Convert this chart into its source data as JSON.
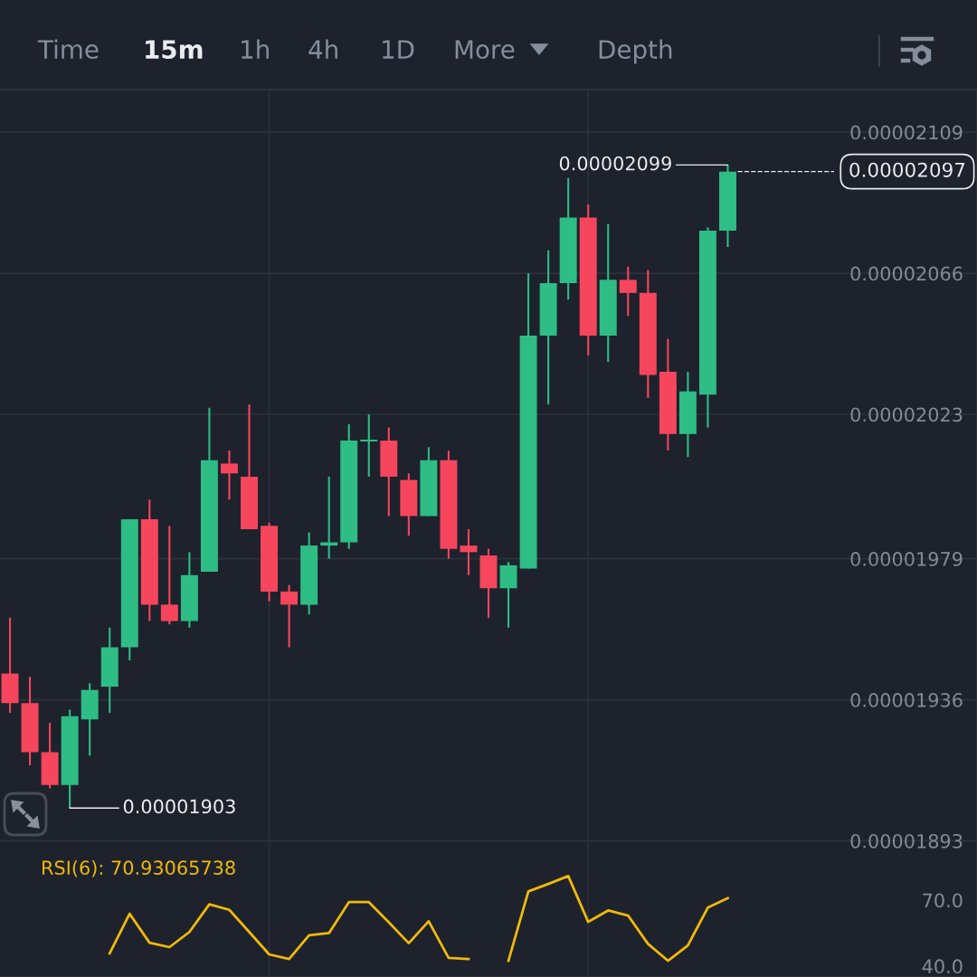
{
  "chart_data": [
    {
      "type": "other",
      "annotations": [
        "Time",
        "15m",
        "1h",
        "4h",
        "1D",
        "More",
        "Depth"
      ]
    },
    {
      "type": "candlestick",
      "categories": [
        null,
        null,
        null,
        null,
        null,
        null,
        null,
        null,
        null,
        null,
        null,
        null,
        null,
        null,
        null,
        null,
        null,
        null,
        null,
        null,
        null,
        null,
        null,
        null,
        null,
        null,
        null,
        null,
        null,
        null,
        null,
        null,
        null,
        null,
        null,
        null,
        null,
        null,
        null,
        null,
        null,
        null,
        null,
        null,
        null,
        null,
        null,
        null,
        null
      ],
      "ohlc": [
        [
          1.944e-05,
          1.961e-05,
          1.932e-05,
          1.935e-05
        ],
        [
          1.935e-05,
          1.943e-05,
          1.916e-05,
          1.92e-05
        ],
        [
          1.92e-05,
          1.929e-05,
          1.909e-05,
          1.91e-05
        ],
        [
          1.91e-05,
          1.933e-05,
          1.903e-05,
          1.931e-05
        ],
        [
          1.93e-05,
          1.941e-05,
          1.919e-05,
          1.939e-05
        ],
        [
          1.94e-05,
          1.958e-05,
          1.932e-05,
          1.952e-05
        ],
        [
          1.952e-05,
          1.991e-05,
          1.948e-05,
          1.991e-05
        ],
        [
          1.991e-05,
          1.997e-05,
          1.96e-05,
          1.965e-05
        ],
        [
          1.965e-05,
          1.989e-05,
          1.959e-05,
          1.96e-05
        ],
        [
          1.96e-05,
          1.981e-05,
          1.958e-05,
          1.974e-05
        ],
        [
          1.975e-05,
          2.025e-05,
          1.975e-05,
          2.009e-05
        ],
        [
          2.008e-05,
          2.012e-05,
          1.997e-05,
          2.005e-05
        ],
        [
          2.004e-05,
          2.026e-05,
          1.988e-05,
          1.988e-05
        ],
        [
          1.989e-05,
          1.99e-05,
          1.966e-05,
          1.969e-05
        ],
        [
          1.969e-05,
          1.971e-05,
          1.952e-05,
          1.965e-05
        ],
        [
          1.965e-05,
          1.987e-05,
          1.962e-05,
          1.983e-05
        ],
        [
          1.983e-05,
          2.004e-05,
          1.979e-05,
          1.984e-05
        ],
        [
          1.984e-05,
          2.02e-05,
          1.982e-05,
          2.015e-05
        ],
        [
          2.015e-05,
          2.023e-05,
          2.004e-05,
          2.015e-05
        ],
        [
          2.015e-05,
          2.019e-05,
          1.992e-05,
          2.004e-05
        ],
        [
          2.003e-05,
          2.005e-05,
          1.986e-05,
          1.992e-05
        ],
        [
          1.992e-05,
          2.013e-05,
          1.992e-05,
          2.009e-05
        ],
        [
          2.009e-05,
          2.012e-05,
          1.979e-05,
          1.982e-05
        ],
        [
          1.983e-05,
          1.988e-05,
          1.974e-05,
          1.981e-05
        ],
        [
          1.98e-05,
          1.982e-05,
          1.961e-05,
          1.97e-05
        ],
        [
          1.97e-05,
          1.978e-05,
          1.958e-05,
          1.977e-05
        ],
        [
          1.976e-05,
          2.066e-05,
          1.976e-05,
          2.047e-05
        ],
        [
          2.047e-05,
          2.073e-05,
          2.026e-05,
          2.063e-05
        ],
        [
          2.063e-05,
          2.095e-05,
          2.058e-05,
          2.083e-05
        ],
        [
          2.083e-05,
          2.087e-05,
          2.041e-05,
          2.047e-05
        ],
        [
          2.047e-05,
          2.081e-05,
          2.039e-05,
          2.064e-05
        ],
        [
          2.064e-05,
          2.068e-05,
          2.053e-05,
          2.06e-05
        ],
        [
          2.06e-05,
          2.067e-05,
          2.028e-05,
          2.035e-05
        ],
        [
          2.036e-05,
          2.046e-05,
          2.012e-05,
          2.017e-05
        ],
        [
          2.017e-05,
          2.036e-05,
          2.01e-05,
          2.03e-05
        ],
        [
          2.029e-05,
          2.08e-05,
          2.019e-05,
          2.079e-05
        ],
        [
          2.079e-05,
          2.099e-05,
          2.074e-05,
          2.097e-05
        ],
        null,
        null,
        null,
        null,
        null,
        null,
        null,
        null,
        null,
        null,
        null,
        null
      ],
      "colors": [
        "#f6465d",
        "#f6465d",
        "#f6465d",
        "#2ebd85",
        "#2ebd85",
        "#2ebd85",
        "#2ebd85",
        "#f6465d",
        "#f6465d",
        "#2ebd85",
        "#2ebd85",
        "#f6465d",
        "#f6465d",
        "#f6465d",
        "#f6465d",
        "#2ebd85",
        "#2ebd85",
        "#2ebd85",
        "#2ebd85",
        "#f6465d",
        "#f6465d",
        "#2ebd85",
        "#f6465d",
        "#f6465d",
        "#f6465d",
        "#2ebd85",
        "#2ebd85",
        "#2ebd85",
        "#2ebd85",
        "#f6465d",
        "#2ebd85",
        "#f6465d",
        "#f6465d",
        "#f6465d",
        "#2ebd85",
        "#2ebd85",
        "#2ebd85",
        null,
        null,
        null,
        null,
        null,
        null,
        null,
        null,
        null,
        null,
        null,
        null
      ],
      "ylim": [
        1.893e-05,
        2.122e-05
      ],
      "yticks": [
        {
          "value": 2.109e-05,
          "label": "0.00002109"
        },
        {
          "value": 2.066e-05,
          "label": "0.00002066"
        },
        {
          "value": 2.023e-05,
          "label": "0.00002023"
        },
        {
          "value": 1.979e-05,
          "label": "0.00001979"
        },
        {
          "value": 1.936e-05,
          "label": "0.00001936"
        },
        {
          "value": 1.893e-05,
          "label": "0.00001893"
        }
      ],
      "grid": "y",
      "tick_labels": "y",
      "ref_lines": [
        {
          "axis": "y",
          "value": 2.097e-05,
          "label": "0.00002097",
          "color": "#eaecef",
          "line_style": "dashed"
        }
      ],
      "annotations": [
        "0.00002099",
        "0.00001903"
      ]
    },
    {
      "type": "line",
      "title": "RSI(6): 70.93065738",
      "categories": [
        null,
        null,
        null,
        null,
        null,
        null,
        null,
        null,
        null,
        null,
        null,
        null,
        null,
        null,
        null,
        null,
        null,
        null,
        null,
        null,
        null,
        null,
        null,
        null,
        null,
        null,
        null,
        null,
        null,
        null,
        null,
        null,
        null,
        null,
        null,
        null,
        null,
        null,
        null,
        null,
        null,
        null,
        null,
        null,
        null,
        null,
        null,
        null,
        null
      ],
      "series": [
        {
          "color": "#f0b90b",
          "values": [
            null,
            null,
            null,
            null,
            null,
            45.8,
            63.8,
            50.6,
            48.6,
            55.5,
            68.1,
            65.6,
            55.5,
            45.3,
            43.2,
            54.0,
            55.0,
            69.1,
            69.1,
            59.9,
            50.4,
            60.4,
            43.7,
            43.2,
            null,
            42.4,
            74.0,
            77.4,
            81.0,
            60.1,
            65.3,
            63.0,
            50.1,
            42.4,
            49.4,
            66.6,
            70.9,
            null,
            null,
            null,
            null,
            null,
            null,
            null,
            null,
            null,
            null,
            null,
            null
          ]
        }
      ],
      "ylim": [
        35,
        97
      ],
      "yticks": [
        {
          "value": 70,
          "label": "70.0"
        },
        {
          "value": 40,
          "label": "40.0"
        }
      ],
      "tick_labels": "y",
      "line_style": "solid"
    }
  ]
}
